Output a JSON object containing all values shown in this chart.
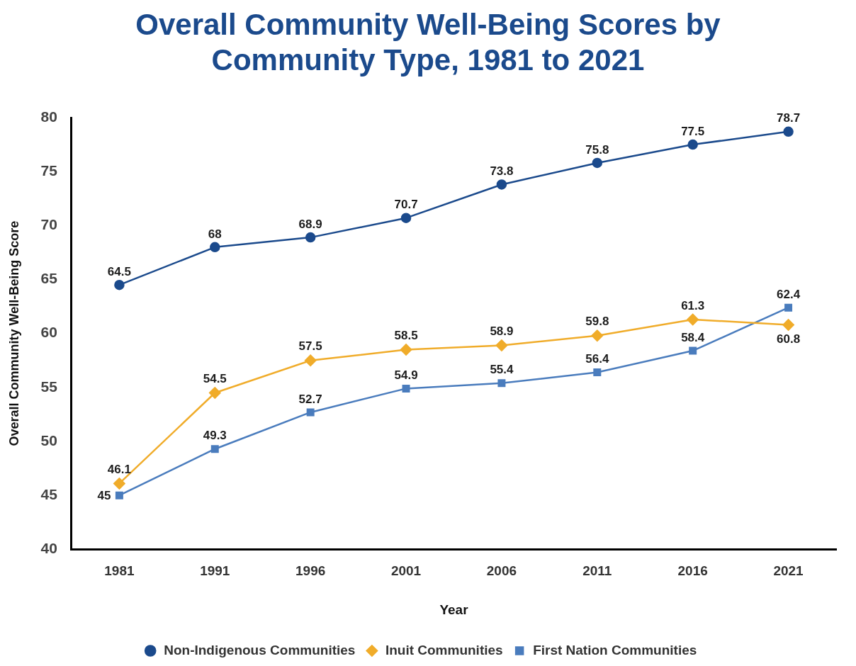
{
  "chart_data": {
    "type": "line",
    "title": "Overall Community Well-Being Scores by Community Type, 1981 to 2021",
    "xlabel": "Year",
    "ylabel": "Overall Community Well-Being Score",
    "categories": [
      "1981",
      "1991",
      "1996",
      "2001",
      "2006",
      "2011",
      "2016",
      "2021"
    ],
    "series": [
      {
        "name": "Non-Indigenous Communities",
        "color": "#1b4a8c",
        "marker": "circle",
        "values": [
          64.5,
          68,
          68.9,
          70.7,
          73.8,
          75.8,
          77.5,
          78.7
        ]
      },
      {
        "name": "Inuit Communities",
        "color": "#f0ac2a",
        "marker": "diamond",
        "values": [
          46.1,
          54.5,
          57.5,
          58.5,
          58.9,
          59.8,
          61.3,
          60.8
        ]
      },
      {
        "name": "First Nation Communities",
        "color": "#4a7cbd",
        "marker": "square",
        "values": [
          45,
          49.3,
          52.7,
          54.9,
          55.4,
          56.4,
          58.4,
          62.4
        ]
      }
    ],
    "ylim": [
      40,
      80
    ],
    "yticks": [
      40,
      45,
      50,
      55,
      60,
      65,
      70,
      75,
      80
    ],
    "data_labels": true,
    "legend": "bottom",
    "line_style": "solid"
  }
}
